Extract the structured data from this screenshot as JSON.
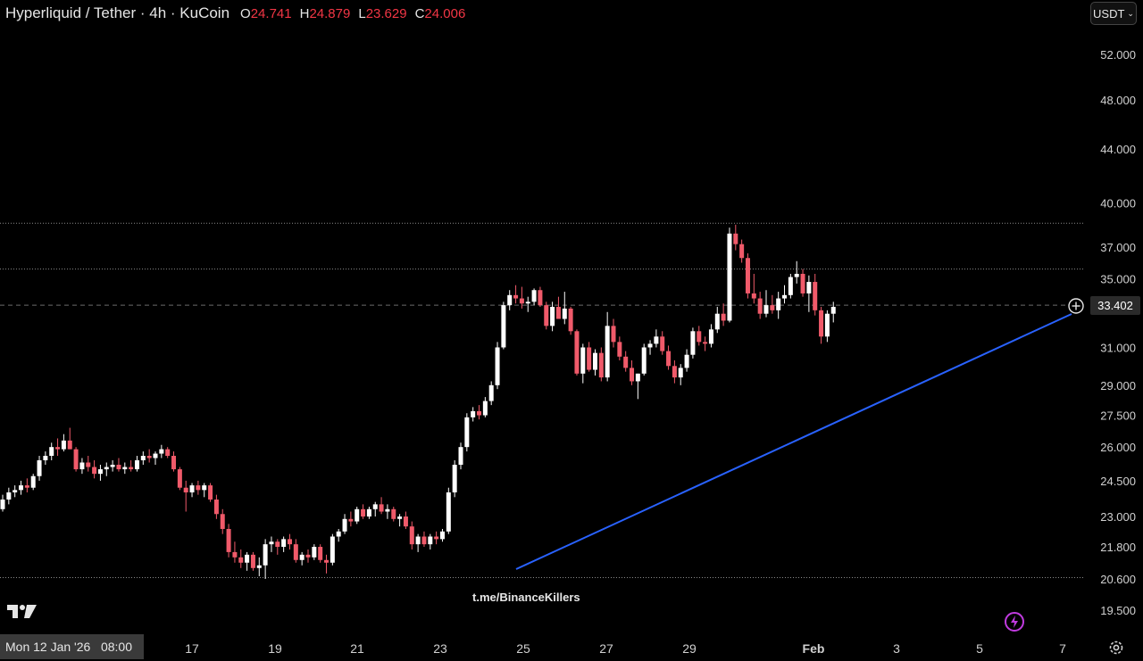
{
  "legend": {
    "symbol": "Hyperliquid / Tether · 4h · KuCoin",
    "o_label": "O",
    "o": "24.741",
    "h_label": "H",
    "h": "24.879",
    "l_label": "L",
    "l": "23.629",
    "c_label": "C",
    "c": "24.006"
  },
  "currency_button": "USDT",
  "watermark": "t.me/BinanceKillers",
  "cursor_date": "Mon 12 Jan '26   08:00",
  "current_price_label": "33.402",
  "colors": {
    "up": "#ffffff",
    "down": "#f05a6a",
    "trendline": "#2962ff",
    "background": "#000000"
  },
  "chart_data": {
    "type": "candlestick",
    "scale": "log",
    "price_ticks": [
      "52.000",
      "48.000",
      "44.000",
      "40.000",
      "37.000",
      "35.000",
      "31.000",
      "29.000",
      "27.500",
      "26.000",
      "24.500",
      "23.000",
      "21.800",
      "20.600",
      "19.500"
    ],
    "date_ticks": [
      "17",
      "19",
      "21",
      "23",
      "25",
      "27",
      "29",
      "Feb",
      "3",
      "5",
      "7"
    ],
    "horizontal_levels": [
      38.6,
      35.6,
      20.65
    ],
    "current_price": 33.402,
    "trendline": {
      "start": [
        "Jan 24",
        21.0
      ],
      "end": [
        "Feb 6",
        32.6
      ]
    },
    "candles_ohlc": [
      [
        23.3,
        23.9,
        23.2,
        23.7
      ],
      [
        23.7,
        24.2,
        23.5,
        24.0
      ],
      [
        24.0,
        24.3,
        23.8,
        24.1
      ],
      [
        24.1,
        24.5,
        23.9,
        24.3
      ],
      [
        24.3,
        24.6,
        24.0,
        24.2
      ],
      [
        24.2,
        24.8,
        24.1,
        24.7
      ],
      [
        24.7,
        25.6,
        24.5,
        25.4
      ],
      [
        25.4,
        25.8,
        25.2,
        25.6
      ],
      [
        25.6,
        26.2,
        25.4,
        26.0
      ],
      [
        26.0,
        26.4,
        25.6,
        25.9
      ],
      [
        25.9,
        26.6,
        25.8,
        26.3
      ],
      [
        26.3,
        26.9,
        25.9,
        25.9
      ],
      [
        25.9,
        26.0,
        24.9,
        25.0
      ],
      [
        25.0,
        25.5,
        24.8,
        25.3
      ],
      [
        25.3,
        25.6,
        24.9,
        25.1
      ],
      [
        25.1,
        25.4,
        24.6,
        24.8
      ],
      [
        24.8,
        25.2,
        24.5,
        25.0
      ],
      [
        25.0,
        25.3,
        24.7,
        25.1
      ],
      [
        25.1,
        25.4,
        24.9,
        25.2
      ],
      [
        25.2,
        25.5,
        24.9,
        25.0
      ],
      [
        25.0,
        25.3,
        24.8,
        25.1
      ],
      [
        25.1,
        25.4,
        24.9,
        25.0
      ],
      [
        25.0,
        25.6,
        24.9,
        25.4
      ],
      [
        25.4,
        25.8,
        25.2,
        25.6
      ],
      [
        25.6,
        25.9,
        25.3,
        25.5
      ],
      [
        25.5,
        25.8,
        25.2,
        25.7
      ],
      [
        25.7,
        26.1,
        25.5,
        25.9
      ],
      [
        25.9,
        26.0,
        25.5,
        25.6
      ],
      [
        25.6,
        25.8,
        24.9,
        25.0
      ],
      [
        25.0,
        25.1,
        24.1,
        24.2
      ],
      [
        24.2,
        24.5,
        23.2,
        24.0
      ],
      [
        24.0,
        24.4,
        23.8,
        24.3
      ],
      [
        24.3,
        24.5,
        23.9,
        24.1
      ],
      [
        24.1,
        24.4,
        23.8,
        24.3
      ],
      [
        24.3,
        24.4,
        23.6,
        23.7
      ],
      [
        23.7,
        23.9,
        22.9,
        23.1
      ],
      [
        23.1,
        23.3,
        22.3,
        22.5
      ],
      [
        22.5,
        22.7,
        21.4,
        21.6
      ],
      [
        21.6,
        22.0,
        21.2,
        21.4
      ],
      [
        21.4,
        21.7,
        21.0,
        21.2
      ],
      [
        21.2,
        21.6,
        20.9,
        21.5
      ],
      [
        21.5,
        21.6,
        20.9,
        21.0
      ],
      [
        21.0,
        21.4,
        20.7,
        21.1
      ],
      [
        21.1,
        22.1,
        20.6,
        21.9
      ],
      [
        21.9,
        22.2,
        21.6,
        22.0
      ],
      [
        22.0,
        22.1,
        21.5,
        21.8
      ],
      [
        21.8,
        22.2,
        21.6,
        22.1
      ],
      [
        22.1,
        22.3,
        21.7,
        21.9
      ],
      [
        21.9,
        22.1,
        21.2,
        21.3
      ],
      [
        21.3,
        21.6,
        21.1,
        21.5
      ],
      [
        21.5,
        21.7,
        21.2,
        21.4
      ],
      [
        21.4,
        21.9,
        21.3,
        21.8
      ],
      [
        21.8,
        21.9,
        21.2,
        21.3
      ],
      [
        21.3,
        21.5,
        20.8,
        21.2
      ],
      [
        21.2,
        22.3,
        21.1,
        22.2
      ],
      [
        22.2,
        22.5,
        22.0,
        22.4
      ],
      [
        22.4,
        23.1,
        22.3,
        22.9
      ],
      [
        22.9,
        23.2,
        22.6,
        22.8
      ],
      [
        22.8,
        23.4,
        22.7,
        23.3
      ],
      [
        23.3,
        23.5,
        22.9,
        23.0
      ],
      [
        23.0,
        23.4,
        22.9,
        23.3
      ],
      [
        23.3,
        23.6,
        23.0,
        23.5
      ],
      [
        23.5,
        23.8,
        23.1,
        23.2
      ],
      [
        23.2,
        23.5,
        22.9,
        23.3
      ],
      [
        23.3,
        23.4,
        22.8,
        22.9
      ],
      [
        22.9,
        23.1,
        22.6,
        23.0
      ],
      [
        23.0,
        23.2,
        22.5,
        22.6
      ],
      [
        22.6,
        22.8,
        21.7,
        21.9
      ],
      [
        21.9,
        22.3,
        21.6,
        22.2
      ],
      [
        22.2,
        22.4,
        21.8,
        21.9
      ],
      [
        21.9,
        22.3,
        21.7,
        22.2
      ],
      [
        22.2,
        22.4,
        21.9,
        22.1
      ],
      [
        22.1,
        22.5,
        22.0,
        22.4
      ],
      [
        22.4,
        24.2,
        22.3,
        24.0
      ],
      [
        24.0,
        25.4,
        23.8,
        25.2
      ],
      [
        25.2,
        26.2,
        25.0,
        26.0
      ],
      [
        26.0,
        27.6,
        25.8,
        27.4
      ],
      [
        27.4,
        27.9,
        27.2,
        27.7
      ],
      [
        27.7,
        28.0,
        27.3,
        27.5
      ],
      [
        27.5,
        28.4,
        27.4,
        28.2
      ],
      [
        28.2,
        29.2,
        28.0,
        29.0
      ],
      [
        29.0,
        31.3,
        28.8,
        31.0
      ],
      [
        31.0,
        33.6,
        30.9,
        33.4
      ],
      [
        33.4,
        34.3,
        33.1,
        34.0
      ],
      [
        34.0,
        34.6,
        33.5,
        33.8
      ],
      [
        33.8,
        34.5,
        33.2,
        33.5
      ],
      [
        33.5,
        33.9,
        33.0,
        33.6
      ],
      [
        33.6,
        34.4,
        33.4,
        34.3
      ],
      [
        34.3,
        34.5,
        33.3,
        33.4
      ],
      [
        33.4,
        33.6,
        32.0,
        32.2
      ],
      [
        32.2,
        33.6,
        31.9,
        33.3
      ],
      [
        33.3,
        33.9,
        33.0,
        32.6
      ],
      [
        32.6,
        34.2,
        32.3,
        33.2
      ],
      [
        33.2,
        33.3,
        31.7,
        31.9
      ],
      [
        31.9,
        32.0,
        29.5,
        29.6
      ],
      [
        29.6,
        31.2,
        29.1,
        31.0
      ],
      [
        31.0,
        31.3,
        29.7,
        29.8
      ],
      [
        29.8,
        30.9,
        29.5,
        30.7
      ],
      [
        30.7,
        31.0,
        29.2,
        29.4
      ],
      [
        29.4,
        33.0,
        29.2,
        32.2
      ],
      [
        32.2,
        32.6,
        31.0,
        31.3
      ],
      [
        31.3,
        31.6,
        30.3,
        30.5
      ],
      [
        30.5,
        30.8,
        29.7,
        29.9
      ],
      [
        29.9,
        30.3,
        29.0,
        29.2
      ],
      [
        29.2,
        29.6,
        28.3,
        29.6
      ],
      [
        29.6,
        31.2,
        29.5,
        31.0
      ],
      [
        31.0,
        31.4,
        30.6,
        31.2
      ],
      [
        31.2,
        32.0,
        31.0,
        31.6
      ],
      [
        31.6,
        31.9,
        30.6,
        30.8
      ],
      [
        30.8,
        31.1,
        29.8,
        30.0
      ],
      [
        30.0,
        30.3,
        29.1,
        29.4
      ],
      [
        29.4,
        30.1,
        29.0,
        29.9
      ],
      [
        29.9,
        30.9,
        29.7,
        30.6
      ],
      [
        30.6,
        32.1,
        30.4,
        31.9
      ],
      [
        31.9,
        32.2,
        31.1,
        31.3
      ],
      [
        31.3,
        31.6,
        30.8,
        31.2
      ],
      [
        31.2,
        32.3,
        31.0,
        32.0
      ],
      [
        32.0,
        33.3,
        31.8,
        32.9
      ],
      [
        32.9,
        33.5,
        32.2,
        32.5
      ],
      [
        32.5,
        38.3,
        32.4,
        37.9
      ],
      [
        37.9,
        38.5,
        36.8,
        37.2
      ],
      [
        37.2,
        37.5,
        36.0,
        36.3
      ],
      [
        36.3,
        36.6,
        33.8,
        34.1
      ],
      [
        34.1,
        35.3,
        33.5,
        33.8
      ],
      [
        33.8,
        34.2,
        32.6,
        32.9
      ],
      [
        32.9,
        34.3,
        32.7,
        33.4
      ],
      [
        33.4,
        34.0,
        32.9,
        33.1
      ],
      [
        33.1,
        34.2,
        32.6,
        33.8
      ],
      [
        33.8,
        34.6,
        33.5,
        34.0
      ],
      [
        34.0,
        35.3,
        33.8,
        35.1
      ],
      [
        35.1,
        36.1,
        34.7,
        35.3
      ],
      [
        35.3,
        35.6,
        33.9,
        34.1
      ],
      [
        34.1,
        35.2,
        33.0,
        34.8
      ],
      [
        34.8,
        35.3,
        32.8,
        33.1
      ],
      [
        33.1,
        33.3,
        31.2,
        31.6
      ],
      [
        31.6,
        33.1,
        31.3,
        32.9
      ],
      [
        32.9,
        33.6,
        32.4,
        33.3
      ]
    ]
  }
}
